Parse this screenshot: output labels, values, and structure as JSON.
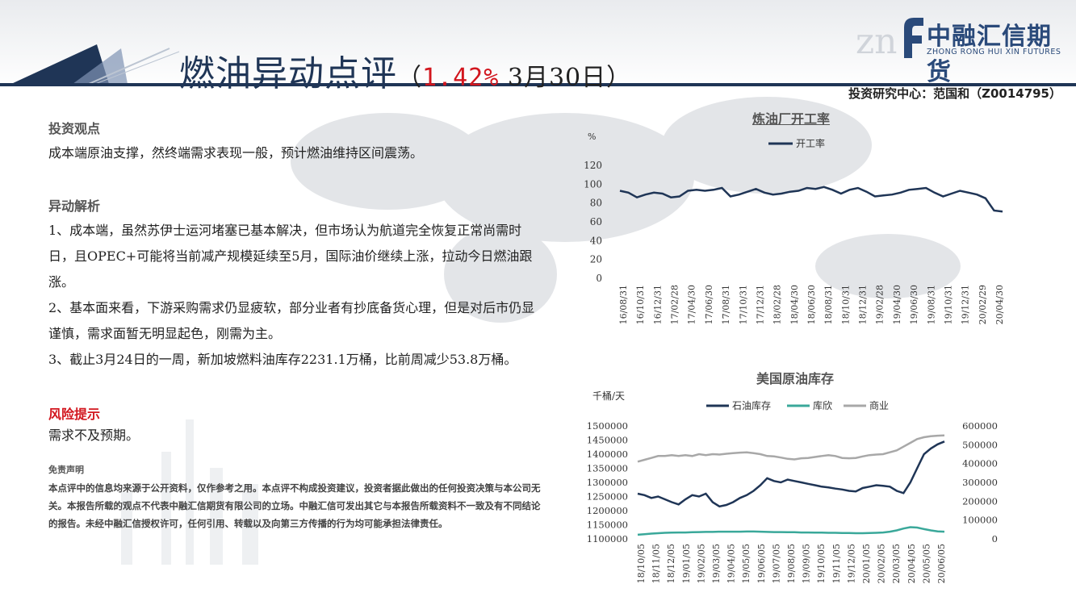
{
  "header": {
    "title": "燃油异动点评",
    "paren_open": "（",
    "change_pct": "1.42%",
    "date": "3月30日",
    "paren_close": "）",
    "author": "投资研究中心：范国和（Z0014795）",
    "logo_cn": "中融汇信期货",
    "logo_en": "ZHONG RONG HUI XIN FUTURES",
    "logo_mark": "znf"
  },
  "sections": {
    "view_head": "投资观点",
    "view_text": "成本端原油支撑，然终端需求表现一般，预计燃油维持区间震荡。",
    "analysis_head": "异动解析",
    "analysis_1": "1、成本端，虽然苏伊士运河堵塞已基本解决，但市场认为航道完全恢复正常尚需时日，且OPEC+可能将当前减产规模延续至5月，国际油价继续上涨，拉动今日燃油跟涨。",
    "analysis_2": "2、基本面来看，下游采购需求仍显疲软，部分业者有抄底备货心理，但是对后市仍显谨慎，需求面暂无明显起色，刚需为主。",
    "analysis_3": "3、截止3月24日的一周，新加坡燃料油库存2231.1万桶，比前周减少53.8万桶。",
    "risk_head": "风险提示",
    "risk_text": "需求不及预期。",
    "disclaimer_head": "免责声明",
    "disclaimer_text": "本点评中的信息均来源于公开资料，仅作参考之用。本点评不构成投资建议，投资者据此做出的任何投资决策与本公司无关。本报告所载的观点不代表中融汇信期货有限公司的立场。中融汇信可发出其它与本报告所载资料不一致及有不同结论的报告。未经中融汇信授权许可，任何引用、转载以及向第三方传播的行为均可能承担法律责任。"
  },
  "chart_data": [
    {
      "type": "line",
      "title": "炼油厂开工率",
      "ylabel": "%",
      "ylim": [
        0,
        120
      ],
      "yticks": [
        0,
        20,
        40,
        60,
        80,
        100,
        120
      ],
      "x_ticks": [
        "16/08/31",
        "16/10/31",
        "16/12/31",
        "17/02/28",
        "17/04/30",
        "17/06/30",
        "17/08/31",
        "17/10/31",
        "17/12/31",
        "18/02/28",
        "18/04/30",
        "18/06/30",
        "18/08/31",
        "18/10/31",
        "18/12/31",
        "19/02/28",
        "19/04/30",
        "19/06/30",
        "19/08/31",
        "19/10/31",
        "19/12/31",
        "20/02/29",
        "20/04/30"
      ],
      "series": [
        {
          "name": "开工率",
          "color": "#1f3556",
          "values": [
            93,
            91,
            86,
            89,
            91,
            90,
            86,
            87,
            93,
            94,
            93,
            94,
            96,
            87,
            89,
            92,
            95,
            91,
            89,
            90,
            92,
            93,
            96,
            95,
            97,
            94,
            90,
            94,
            96,
            92,
            87,
            88,
            89,
            91,
            94,
            95,
            96,
            91,
            87,
            90,
            93,
            91,
            89,
            85,
            72,
            71
          ]
        }
      ]
    },
    {
      "type": "line",
      "title": "美国原油库存",
      "ylabel": "千桶/天",
      "ylim_left": [
        1100000,
        1500000
      ],
      "ylim_right": [
        0,
        600000
      ],
      "yticks_left": [
        1100000,
        1150000,
        1200000,
        1250000,
        1300000,
        1350000,
        1400000,
        1450000,
        1500000
      ],
      "yticks_right": [
        0,
        100000,
        200000,
        300000,
        400000,
        500000,
        600000
      ],
      "x_ticks": [
        "18/10/05",
        "18/11/05",
        "18/12/05",
        "19/01/05",
        "19/02/05",
        "19/03/05",
        "19/04/05",
        "19/05/05",
        "19/06/05",
        "19/07/05",
        "19/08/05",
        "19/09/05",
        "19/10/05",
        "19/11/05",
        "19/12/05",
        "20/01/05",
        "20/02/05",
        "20/03/05",
        "20/04/05",
        "20/05/05",
        "20/06/05"
      ],
      "series": [
        {
          "name": "石油库存",
          "axis": "left",
          "color": "#1f3556",
          "values": [
            1260000,
            1255000,
            1245000,
            1250000,
            1240000,
            1230000,
            1222000,
            1240000,
            1255000,
            1250000,
            1260000,
            1230000,
            1215000,
            1220000,
            1230000,
            1245000,
            1255000,
            1270000,
            1290000,
            1315000,
            1305000,
            1300000,
            1310000,
            1305000,
            1300000,
            1295000,
            1290000,
            1285000,
            1282000,
            1278000,
            1275000,
            1270000,
            1268000,
            1280000,
            1285000,
            1290000,
            1288000,
            1285000,
            1270000,
            1262000,
            1300000,
            1350000,
            1400000,
            1420000,
            1435000,
            1445000
          ]
        },
        {
          "name": "库欣",
          "axis": "right",
          "color": "#3aa89a",
          "values": [
            22000,
            25000,
            28000,
            30000,
            32000,
            33000,
            34000,
            34000,
            35000,
            36000,
            37000,
            37000,
            38000,
            38000,
            38000,
            38000,
            39000,
            39000,
            38000,
            37000,
            36000,
            36000,
            35000,
            35000,
            34000,
            34000,
            33000,
            33000,
            32000,
            32000,
            31000,
            31000,
            30000,
            30000,
            31000,
            32000,
            34000,
            38000,
            45000,
            55000,
            62000,
            60000,
            52000,
            45000,
            40000,
            38000
          ]
        },
        {
          "name": "商业",
          "axis": "right",
          "color": "#a8a8a8",
          "values": [
            410000,
            420000,
            430000,
            440000,
            440000,
            445000,
            440000,
            445000,
            440000,
            450000,
            445000,
            450000,
            448000,
            452000,
            455000,
            458000,
            460000,
            455000,
            450000,
            440000,
            438000,
            432000,
            425000,
            422000,
            428000,
            430000,
            435000,
            440000,
            445000,
            440000,
            430000,
            428000,
            430000,
            438000,
            445000,
            448000,
            450000,
            460000,
            470000,
            490000,
            510000,
            530000,
            540000,
            545000,
            548000,
            550000
          ]
        }
      ]
    }
  ]
}
